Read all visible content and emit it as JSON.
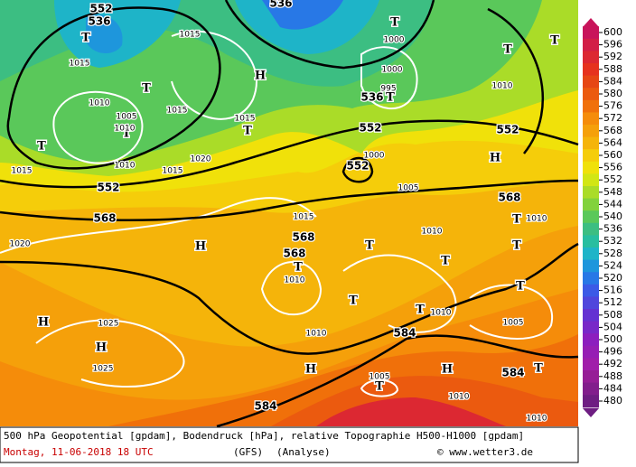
{
  "map": {
    "geopotential_labels": [
      "552",
      "536",
      "536",
      "536",
      "552",
      "552",
      "552",
      "552",
      "568",
      "568",
      "568",
      "568",
      "584",
      "584",
      "584"
    ],
    "system_labels": [
      "T",
      "T",
      "T",
      "T",
      "T",
      "T",
      "T",
      "T",
      "T",
      "H",
      "H",
      "T",
      "T",
      "H",
      "T",
      "T",
      "T",
      "T",
      "T",
      "H",
      "H",
      "H",
      "H",
      "T",
      "T",
      "T"
    ],
    "pressure_labels": [
      "1015",
      "1015",
      "1000",
      "1000",
      "995",
      "1010",
      "1005",
      "1010",
      "1015",
      "1015",
      "1010",
      "1015",
      "1020",
      "1000",
      "1005",
      "1010",
      "1015",
      "1015",
      "1020",
      "1010",
      "1010",
      "1010",
      "1010",
      "1005",
      "1010",
      "1025",
      "1025",
      "1005",
      "1010",
      "1010"
    ]
  },
  "colorbar": {
    "ticks": [
      600,
      596,
      592,
      588,
      584,
      580,
      576,
      572,
      568,
      564,
      560,
      556,
      552,
      548,
      544,
      540,
      536,
      532,
      528,
      524,
      520,
      516,
      512,
      508,
      504,
      500,
      496,
      492,
      488,
      484,
      480
    ],
    "colors": [
      "#c8145a",
      "#d21e46",
      "#dc2832",
      "#e6321e",
      "#e64614",
      "#eb5a0f",
      "#f0700a",
      "#f58c0a",
      "#f5a00a",
      "#f5b40a",
      "#f5cd0a",
      "#f0e10a",
      "#d2e614",
      "#aadc28",
      "#82d23c",
      "#5ac85a",
      "#3cbe82",
      "#28bea0",
      "#1eb4c8",
      "#1e96dc",
      "#2878e6",
      "#3c5ae6",
      "#5046dc",
      "#6432d2",
      "#7828c8",
      "#8c1ebe",
      "#961eb4",
      "#a01eaa",
      "#961e96",
      "#821e8c",
      "#6e1e82"
    ]
  },
  "footer": {
    "description": "500 hPa Geopotential [gpdam], Bodendruck [hPa], relative Topographie H500-H1000 [gpdam]",
    "date": "Montag, 11-06-2018  18 UTC",
    "model": "(GFS)",
    "run": "(Analyse)",
    "credit": "© www.wetter3.de"
  }
}
